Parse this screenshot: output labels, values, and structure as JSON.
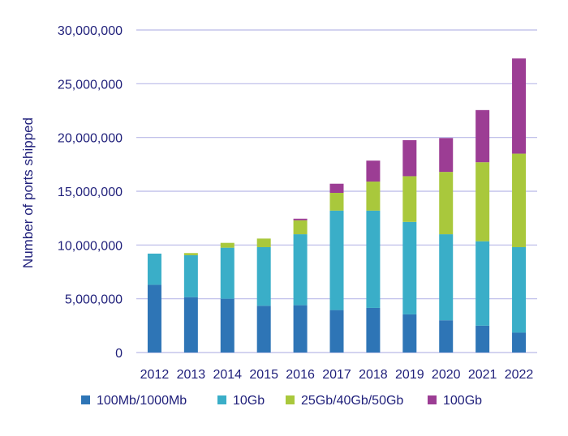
{
  "chart_data": {
    "type": "bar",
    "stacked": true,
    "title": "",
    "xlabel": "",
    "ylabel": "Number of ports shipped",
    "ylim": [
      0,
      30000000
    ],
    "y_ticks": [
      0,
      5000000,
      10000000,
      15000000,
      20000000,
      25000000,
      30000000
    ],
    "y_tick_labels": [
      "0",
      "5,000,000",
      "10,000,000",
      "15,000,000",
      "20,000,000",
      "25,000,000",
      "30,000,000"
    ],
    "grid": true,
    "legend_position": "bottom",
    "categories": [
      "2012",
      "2013",
      "2014",
      "2015",
      "2016",
      "2017",
      "2018",
      "2019",
      "2020",
      "2021",
      "2022"
    ],
    "series": [
      {
        "name": "100Mb/1000Mb",
        "color": "#2e75b6",
        "values": [
          6300000,
          5150000,
          5000000,
          4350000,
          4400000,
          3950000,
          4150000,
          3550000,
          3000000,
          2500000,
          1850000
        ]
      },
      {
        "name": "10Gb",
        "color": "#3aaec8",
        "values": [
          2900000,
          3900000,
          4750000,
          5450000,
          6600000,
          9250000,
          9050000,
          8600000,
          8000000,
          7850000,
          7950000
        ]
      },
      {
        "name": "25Gb/40Gb/50Gb",
        "color": "#a9c83c",
        "values": [
          0,
          200000,
          450000,
          800000,
          1300000,
          1650000,
          2700000,
          4250000,
          5800000,
          7350000,
          8700000
        ]
      },
      {
        "name": "100Gb",
        "color": "#9c3d94",
        "values": [
          0,
          0,
          0,
          0,
          150000,
          850000,
          1950000,
          3350000,
          3150000,
          4850000,
          8850000
        ]
      }
    ]
  }
}
